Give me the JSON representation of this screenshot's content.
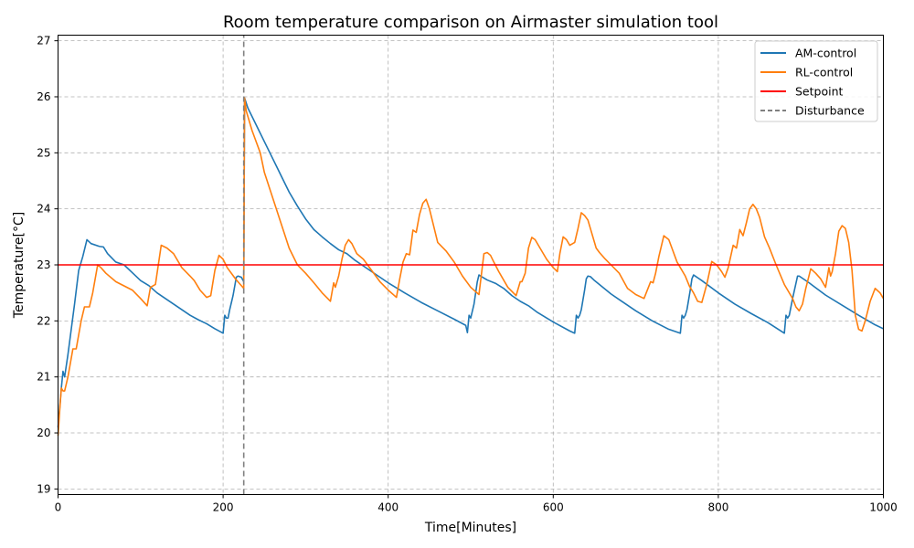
{
  "chart_data": {
    "type": "line",
    "title": "Room temperature comparison on Airmaster simulation tool",
    "xlabel": "Time[Minutes]",
    "ylabel": "Temperature[°C]",
    "xlim": [
      0,
      1000
    ],
    "ylim": [
      18.9,
      27.1
    ],
    "xticks": [
      0,
      200,
      400,
      600,
      800,
      1000
    ],
    "yticks": [
      19,
      20,
      21,
      22,
      23,
      24,
      25,
      26,
      27
    ],
    "grid": true,
    "grid_style": "dashed",
    "legend_position": "top-right",
    "series": [
      {
        "name": "AM-control",
        "color": "#1f77b4",
        "style": "solid",
        "x": [
          0,
          4,
          6,
          8,
          12,
          20,
          25,
          30,
          35,
          40,
          50,
          55,
          60,
          70,
          80,
          90,
          100,
          110,
          120,
          130,
          140,
          150,
          160,
          170,
          180,
          190,
          200,
          202,
          204,
          206,
          208,
          212,
          216,
          218,
          222,
          225,
          226,
          230,
          240,
          250,
          260,
          265,
          270,
          280,
          290,
          300,
          310,
          320,
          330,
          340,
          350,
          360,
          370,
          380,
          390,
          400,
          420,
          440,
          460,
          480,
          494,
          496,
          498,
          500,
          504,
          508,
          510,
          512,
          520,
          530,
          540,
          550,
          560,
          570,
          580,
          600,
          620,
          626,
          628,
          630,
          632,
          634,
          638,
          640,
          642,
          645,
          650,
          660,
          670,
          680,
          700,
          720,
          740,
          754,
          756,
          758,
          760,
          762,
          766,
          768,
          770,
          780,
          800,
          820,
          840,
          860,
          880,
          882,
          884,
          886,
          890,
          896,
          898,
          900,
          910,
          930,
          950,
          970,
          990,
          1000
        ],
        "y": [
          20.1,
          20.8,
          21.1,
          21.0,
          21.4,
          22.3,
          22.9,
          23.15,
          23.45,
          23.38,
          23.33,
          23.32,
          23.2,
          23.05,
          23.0,
          22.86,
          22.72,
          22.63,
          22.5,
          22.4,
          22.3,
          22.2,
          22.1,
          22.02,
          21.95,
          21.86,
          21.78,
          22.1,
          22.05,
          22.05,
          22.2,
          22.45,
          22.78,
          22.8,
          22.78,
          22.7,
          25.98,
          25.8,
          25.5,
          25.2,
          24.9,
          24.75,
          24.6,
          24.3,
          24.05,
          23.82,
          23.63,
          23.5,
          23.38,
          23.27,
          23.2,
          23.08,
          22.98,
          22.88,
          22.78,
          22.68,
          22.5,
          22.33,
          22.18,
          22.03,
          21.92,
          21.79,
          22.1,
          22.05,
          22.3,
          22.7,
          22.82,
          22.8,
          22.73,
          22.67,
          22.58,
          22.45,
          22.35,
          22.27,
          22.16,
          21.98,
          21.82,
          21.78,
          22.1,
          22.05,
          22.1,
          22.2,
          22.55,
          22.75,
          22.8,
          22.79,
          22.72,
          22.6,
          22.48,
          22.38,
          22.18,
          22.0,
          21.85,
          21.78,
          22.1,
          22.05,
          22.1,
          22.2,
          22.55,
          22.75,
          22.82,
          22.72,
          22.5,
          22.3,
          22.13,
          21.97,
          21.78,
          22.1,
          22.05,
          22.1,
          22.4,
          22.8,
          22.8,
          22.78,
          22.68,
          22.46,
          22.28,
          22.1,
          21.93,
          21.86
        ]
      },
      {
        "name": "RL-control",
        "color": "#ff7f0e",
        "style": "solid",
        "x": [
          0,
          2,
          4,
          6,
          8,
          12,
          18,
          22,
          28,
          32,
          38,
          42,
          48,
          52,
          58,
          70,
          90,
          100,
          108,
          112,
          118,
          125,
          132,
          140,
          150,
          160,
          165,
          172,
          180,
          185,
          190,
          195,
          200,
          205,
          215,
          225,
          226,
          228,
          235,
          245,
          250,
          260,
          270,
          280,
          290,
          300,
          310,
          320,
          330,
          334,
          336,
          340,
          344,
          348,
          352,
          356,
          362,
          370,
          380,
          390,
          400,
          410,
          414,
          418,
          422,
          426,
          430,
          434,
          438,
          442,
          446,
          450,
          455,
          460,
          470,
          480,
          490,
          500,
          510,
          516,
          520,
          524,
          528,
          534,
          545,
          555,
          560,
          562,
          566,
          570,
          574,
          578,
          584,
          592,
          600,
          605,
          608,
          612,
          616,
          620,
          626,
          630,
          634,
          638,
          642,
          646,
          652,
          656,
          662,
          670,
          680,
          690,
          700,
          710,
          718,
          721,
          724,
          728,
          734,
          740,
          745,
          750,
          760,
          765,
          770,
          775,
          780,
          786,
          792,
          798,
          804,
          808,
          812,
          818,
          822,
          826,
          830,
          834,
          838,
          842,
          846,
          850,
          856,
          862,
          870,
          880,
          890,
          894,
          898,
          902,
          906,
          912,
          918,
          924,
          930,
          934,
          936,
          938,
          942,
          946,
          950,
          954,
          958,
          962,
          966,
          970,
          974,
          978,
          984,
          990,
          996,
          1000
        ],
        "y": [
          19.95,
          20.4,
          20.8,
          20.75,
          20.75,
          21.0,
          21.5,
          21.5,
          22.0,
          22.25,
          22.25,
          22.5,
          23.0,
          22.95,
          22.85,
          22.7,
          22.55,
          22.4,
          22.27,
          22.6,
          22.65,
          23.35,
          23.3,
          23.2,
          22.95,
          22.8,
          22.72,
          22.55,
          22.42,
          22.45,
          22.9,
          23.17,
          23.1,
          22.95,
          22.75,
          22.58,
          25.98,
          25.75,
          25.4,
          25.0,
          24.65,
          24.2,
          23.75,
          23.3,
          23.0,
          22.85,
          22.68,
          22.5,
          22.35,
          22.68,
          22.6,
          22.8,
          23.1,
          23.35,
          23.45,
          23.38,
          23.2,
          23.1,
          22.9,
          22.7,
          22.55,
          22.42,
          22.75,
          23.05,
          23.2,
          23.18,
          23.62,
          23.58,
          23.9,
          24.1,
          24.17,
          24.0,
          23.7,
          23.4,
          23.25,
          23.05,
          22.8,
          22.6,
          22.47,
          23.2,
          23.22,
          23.17,
          23.05,
          22.88,
          22.6,
          22.45,
          22.7,
          22.7,
          22.85,
          23.3,
          23.49,
          23.45,
          23.3,
          23.1,
          22.95,
          22.88,
          23.2,
          23.5,
          23.45,
          23.35,
          23.4,
          23.65,
          23.93,
          23.88,
          23.8,
          23.6,
          23.3,
          23.22,
          23.12,
          23.0,
          22.85,
          22.58,
          22.47,
          22.4,
          22.7,
          22.68,
          22.85,
          23.15,
          23.52,
          23.45,
          23.25,
          23.05,
          22.8,
          22.62,
          22.5,
          22.35,
          22.33,
          22.65,
          23.06,
          23.0,
          22.88,
          22.78,
          22.95,
          23.35,
          23.3,
          23.63,
          23.52,
          23.75,
          24.0,
          24.08,
          24.0,
          23.85,
          23.5,
          23.3,
          23.0,
          22.65,
          22.4,
          22.25,
          22.18,
          22.3,
          22.58,
          22.93,
          22.85,
          22.75,
          22.6,
          22.95,
          22.8,
          22.88,
          23.2,
          23.6,
          23.7,
          23.65,
          23.4,
          22.9,
          22.1,
          21.85,
          21.82,
          22.0,
          22.35,
          22.58,
          22.5,
          22.4
        ],
        "jump": [
          225,
          22.58,
          25.98
        ]
      },
      {
        "name": "Setpoint",
        "color": "#ff0000",
        "style": "solid",
        "x": [
          0,
          1000
        ],
        "y": [
          23,
          23
        ]
      },
      {
        "name": "Disturbance",
        "color": "#808080",
        "style": "dashed",
        "x": [
          225,
          225
        ],
        "y": [
          18.9,
          27.1
        ]
      }
    ]
  }
}
